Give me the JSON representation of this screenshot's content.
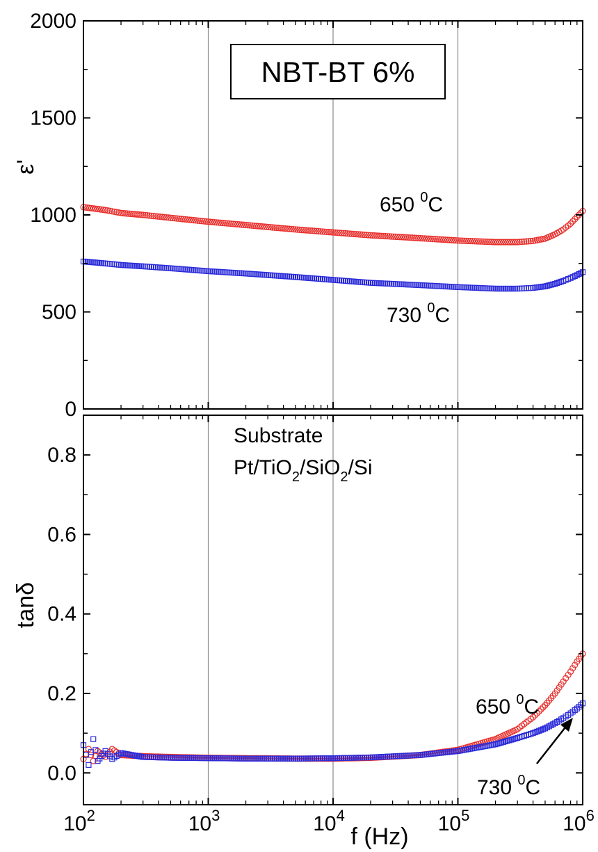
{
  "chart_data": [
    {
      "type": "scatter",
      "panel": "top",
      "ylabel": "ε'",
      "xscale": "log",
      "xlim": [
        100,
        1000000
      ],
      "ylim": [
        0,
        2000
      ],
      "yticks": [
        "0",
        "500",
        "1000",
        "1500",
        "2000"
      ],
      "grid": "vertical at decades",
      "title_box": "NBT-BT 6%",
      "series": [
        {
          "name": "650 0C",
          "color": "#e8312e",
          "marker": "circle",
          "x": [
            100,
            150,
            200,
            300,
            500,
            1000,
            2000,
            5000,
            10000,
            20000,
            50000,
            100000,
            200000,
            300000,
            400000,
            500000,
            600000,
            700000,
            800000,
            900000,
            1000000
          ],
          "y": [
            1040,
            1025,
            1010,
            1000,
            985,
            965,
            948,
            925,
            910,
            895,
            880,
            868,
            860,
            860,
            866,
            878,
            900,
            925,
            955,
            990,
            1020
          ]
        },
        {
          "name": "730 0C",
          "color": "#2b2bd9",
          "marker": "square",
          "x": [
            100,
            150,
            200,
            300,
            500,
            1000,
            2000,
            5000,
            10000,
            20000,
            50000,
            100000,
            200000,
            300000,
            400000,
            500000,
            600000,
            700000,
            800000,
            900000,
            1000000
          ],
          "y": [
            760,
            750,
            742,
            735,
            725,
            710,
            698,
            680,
            665,
            650,
            638,
            628,
            620,
            620,
            624,
            632,
            645,
            660,
            675,
            690,
            705
          ]
        }
      ],
      "annotations": [
        {
          "text": "650 ",
          "sup": "0",
          "text2": "C"
        },
        {
          "text": "730 ",
          "sup": "0",
          "text2": "C"
        }
      ]
    },
    {
      "type": "scatter",
      "panel": "bottom",
      "xlabel": "f (Hz)",
      "ylabel": "tanδ",
      "xscale": "log",
      "xlim": [
        100,
        1000000
      ],
      "ylim": [
        -0.08,
        0.9
      ],
      "yticks": [
        "0.0",
        "0.2",
        "0.4",
        "0.6",
        "0.8"
      ],
      "xticks": [
        "10",
        "10",
        "10",
        "10",
        "10"
      ],
      "xtick_exponents": [
        "2",
        "3",
        "4",
        "5",
        "6"
      ],
      "grid": "vertical at decades",
      "series": [
        {
          "name": "650 0C",
          "color": "#e8312e",
          "marker": "circle",
          "x": [
            100,
            110,
            120,
            130,
            150,
            170,
            200,
            300,
            500,
            1000,
            2000,
            5000,
            10000,
            20000,
            50000,
            100000,
            200000,
            300000,
            400000,
            500000,
            600000,
            700000,
            800000,
            900000,
            1000000
          ],
          "y": [
            0.035,
            0.06,
            0.03,
            0.055,
            0.04,
            0.06,
            0.045,
            0.042,
            0.04,
            0.038,
            0.037,
            0.036,
            0.036,
            0.038,
            0.045,
            0.058,
            0.085,
            0.11,
            0.14,
            0.17,
            0.2,
            0.23,
            0.255,
            0.28,
            0.3
          ]
        },
        {
          "name": "730 0C",
          "color": "#2b2bd9",
          "marker": "square",
          "x": [
            100,
            110,
            120,
            130,
            150,
            170,
            200,
            300,
            500,
            1000,
            2000,
            5000,
            10000,
            20000,
            50000,
            100000,
            200000,
            300000,
            400000,
            500000,
            600000,
            700000,
            800000,
            900000,
            1000000
          ],
          "y": [
            0.07,
            0.02,
            0.085,
            0.03,
            0.055,
            0.035,
            0.05,
            0.04,
            0.038,
            0.037,
            0.036,
            0.036,
            0.037,
            0.039,
            0.045,
            0.055,
            0.072,
            0.088,
            0.1,
            0.112,
            0.125,
            0.138,
            0.15,
            0.162,
            0.175
          ]
        }
      ],
      "annotations": [
        {
          "text": "Substrate"
        },
        {
          "text": "Pt/TiO",
          "sub1": "2",
          "text2": "/SiO",
          "sub2": "2",
          "text3": "/Si"
        },
        {
          "text": "650 ",
          "sup": "0",
          "text2": "C"
        },
        {
          "text": "730 ",
          "sup": "0",
          "text2": "C"
        }
      ]
    }
  ]
}
